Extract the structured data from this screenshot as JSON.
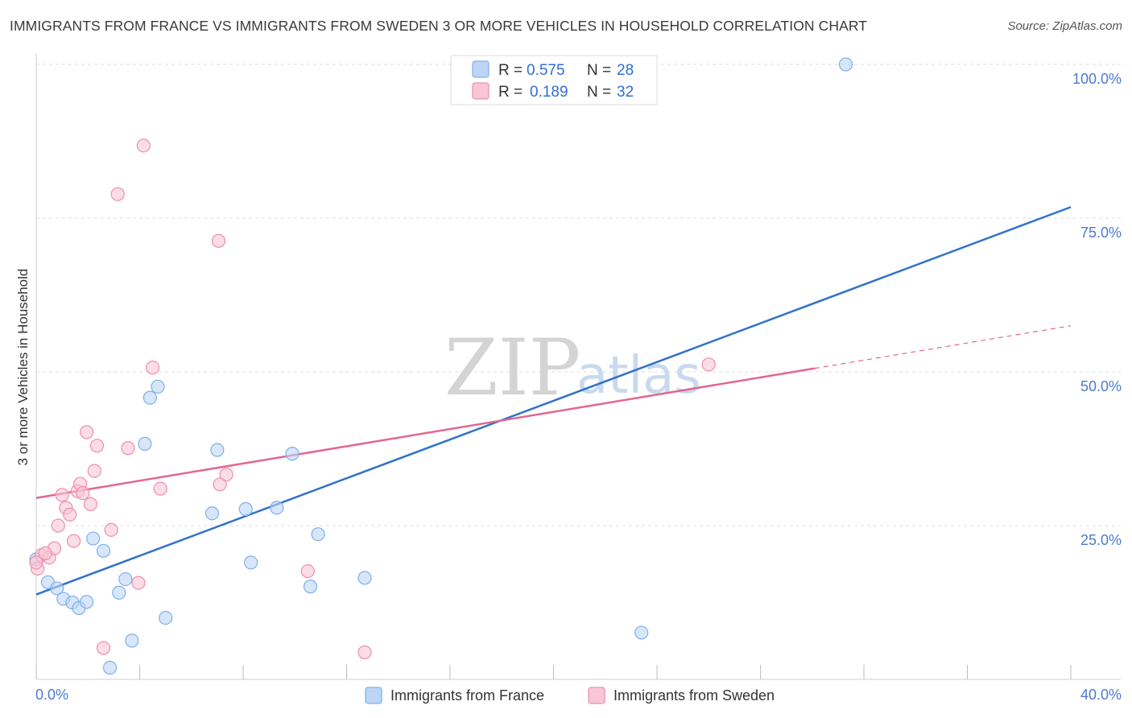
{
  "header": {
    "title": "IMMIGRANTS FROM FRANCE VS IMMIGRANTS FROM SWEDEN 3 OR MORE VEHICLES IN HOUSEHOLD CORRELATION CHART",
    "source": "Source: ZipAtlas.com"
  },
  "watermark": {
    "zip": "ZIP",
    "atlas": "atlas"
  },
  "chart_data": {
    "type": "scatter",
    "title": "IMMIGRANTS FROM FRANCE VS IMMIGRANTS FROM SWEDEN 3 OR MORE VEHICLES IN HOUSEHOLD CORRELATION CHART",
    "xlabel": "",
    "ylabel": "3 or more Vehicles in Household",
    "xlim": [
      0,
      40
    ],
    "ylim": [
      0,
      100
    ],
    "x_tick_labels": [
      {
        "value": 0,
        "label": "0.0%"
      },
      {
        "value": 40,
        "label": "40.0%"
      }
    ],
    "y_tick_labels": [
      {
        "value": 25,
        "label": "25.0%"
      },
      {
        "value": 50,
        "label": "50.0%"
      },
      {
        "value": 75,
        "label": "75.0%"
      },
      {
        "value": 100,
        "label": "100.0%"
      }
    ],
    "grid": true,
    "legend": [
      {
        "name": "Immigrants from France",
        "r_label": "R =",
        "r_value": "0.575",
        "n_label": "N =",
        "n_value": "28",
        "color": "#7fb0ea",
        "fill": "#bcd5f5"
      },
      {
        "name": "Immigrants from Sweden",
        "r_label": "R =",
        "r_value": "0.189",
        "n_label": "N =",
        "n_value": "32",
        "color": "#ee8fab",
        "fill": "#f8c6d4"
      }
    ],
    "series": [
      {
        "name": "Immigrants from France",
        "color": "#7fb0ea",
        "line_color": "#2f72cc",
        "trend": {
          "x0": 0,
          "y0": 13.8,
          "x1": 40,
          "y1": 76.8,
          "solid_until": 40
        },
        "points": [
          {
            "x": 0.0,
            "y": 19.5
          },
          {
            "x": 0.45,
            "y": 15.8
          },
          {
            "x": 0.8,
            "y": 14.8
          },
          {
            "x": 1.05,
            "y": 13.1
          },
          {
            "x": 1.4,
            "y": 12.5
          },
          {
            "x": 1.65,
            "y": 11.6
          },
          {
            "x": 1.95,
            "y": 12.6
          },
          {
            "x": 2.2,
            "y": 22.9
          },
          {
            "x": 2.6,
            "y": 20.9
          },
          {
            "x": 2.85,
            "y": 1.9
          },
          {
            "x": 3.2,
            "y": 14.1
          },
          {
            "x": 3.45,
            "y": 16.3
          },
          {
            "x": 3.7,
            "y": 6.3
          },
          {
            "x": 4.2,
            "y": 38.3
          },
          {
            "x": 4.4,
            "y": 45.8
          },
          {
            "x": 4.7,
            "y": 47.6
          },
          {
            "x": 5.0,
            "y": 10.0
          },
          {
            "x": 6.8,
            "y": 27.0
          },
          {
            "x": 7.0,
            "y": 37.3
          },
          {
            "x": 8.1,
            "y": 27.7
          },
          {
            "x": 8.3,
            "y": 19.0
          },
          {
            "x": 9.3,
            "y": 27.9
          },
          {
            "x": 9.9,
            "y": 36.7
          },
          {
            "x": 10.6,
            "y": 15.1
          },
          {
            "x": 10.9,
            "y": 23.6
          },
          {
            "x": 12.7,
            "y": 16.5
          },
          {
            "x": 23.4,
            "y": 7.6
          },
          {
            "x": 31.3,
            "y": 100.0
          }
        ]
      },
      {
        "name": "Immigrants from Sweden",
        "color": "#ee8fab",
        "line_color": "#e3678f",
        "trend": {
          "x0": 0,
          "y0": 29.5,
          "x1": 40,
          "y1": 57.5,
          "solid_until": 30.1
        },
        "points": [
          {
            "x": 0.05,
            "y": 18.0
          },
          {
            "x": 0.2,
            "y": 20.2
          },
          {
            "x": 0.5,
            "y": 19.8
          },
          {
            "x": 0.7,
            "y": 21.3
          },
          {
            "x": 0.85,
            "y": 25.0
          },
          {
            "x": 1.0,
            "y": 30.0
          },
          {
            "x": 1.15,
            "y": 27.9
          },
          {
            "x": 1.3,
            "y": 26.8
          },
          {
            "x": 1.45,
            "y": 22.5
          },
          {
            "x": 1.6,
            "y": 30.6
          },
          {
            "x": 1.7,
            "y": 31.8
          },
          {
            "x": 1.8,
            "y": 30.3
          },
          {
            "x": 1.95,
            "y": 40.2
          },
          {
            "x": 2.1,
            "y": 28.5
          },
          {
            "x": 2.25,
            "y": 33.9
          },
          {
            "x": 2.35,
            "y": 38.0
          },
          {
            "x": 2.6,
            "y": 5.1
          },
          {
            "x": 2.9,
            "y": 24.3
          },
          {
            "x": 3.15,
            "y": 78.9
          },
          {
            "x": 3.55,
            "y": 37.6
          },
          {
            "x": 3.95,
            "y": 15.7
          },
          {
            "x": 4.15,
            "y": 86.8
          },
          {
            "x": 4.5,
            "y": 50.7
          },
          {
            "x": 4.8,
            "y": 31.0
          },
          {
            "x": 7.05,
            "y": 71.3
          },
          {
            "x": 7.1,
            "y": 31.7
          },
          {
            "x": 7.35,
            "y": 33.3
          },
          {
            "x": 10.5,
            "y": 17.6
          },
          {
            "x": 12.7,
            "y": 4.4
          },
          {
            "x": 26.0,
            "y": 51.2
          },
          {
            "x": 0.0,
            "y": 19.0
          },
          {
            "x": 0.35,
            "y": 20.5
          }
        ]
      }
    ]
  }
}
